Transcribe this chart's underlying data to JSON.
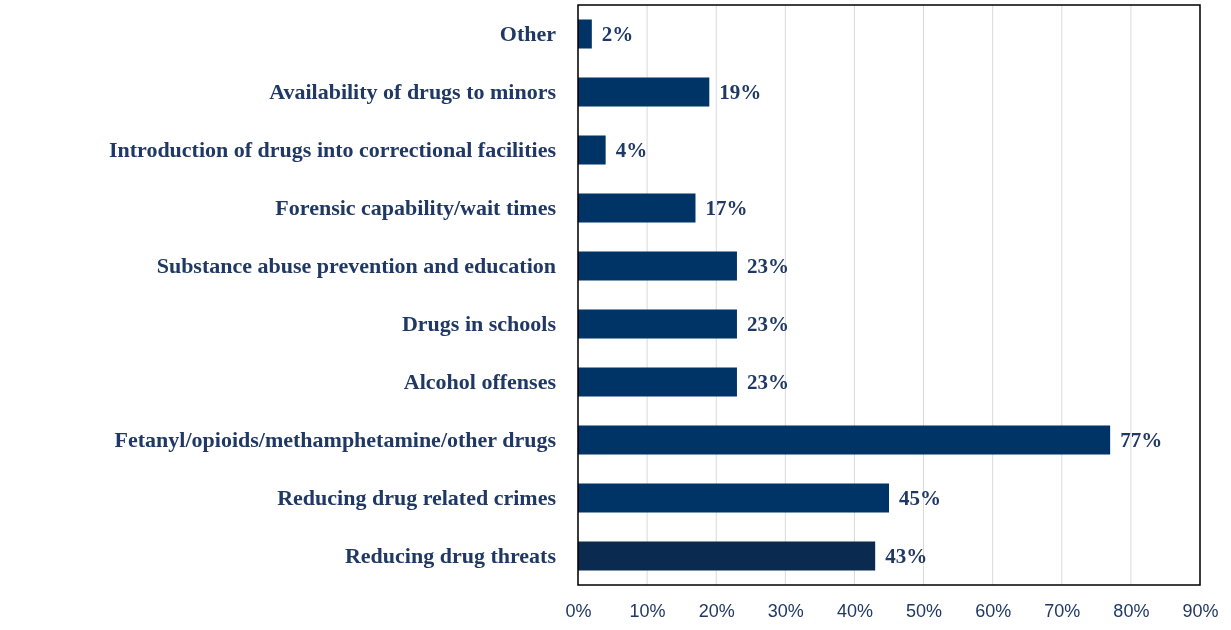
{
  "chart_data": {
    "type": "bar",
    "orientation": "horizontal",
    "categories": [
      "Other",
      "Availability of drugs to minors",
      "Introduction of drugs into correctional facilities",
      "Forensic capability/wait times",
      "Substance abuse prevention and education",
      "Drugs in schools",
      "Alcohol offenses",
      "Fetanyl/opioids/methamphetamine/other drugs",
      "Reducing drug related crimes",
      "Reducing drug threats"
    ],
    "values": [
      2,
      19,
      4,
      17,
      23,
      23,
      23,
      77,
      45,
      43
    ],
    "colors": [
      "#003366",
      "#003366",
      "#003366",
      "#003366",
      "#003366",
      "#003366",
      "#003366",
      "#003366",
      "#003366",
      "#0b2a50"
    ],
    "value_labels": [
      "2%",
      "19%",
      "4%",
      "17%",
      "23%",
      "23%",
      "23%",
      "77%",
      "45%",
      "43%"
    ],
    "xlim": [
      0,
      90
    ],
    "xticks": [
      {
        "value": 0,
        "label": "0%"
      },
      {
        "value": 10,
        "label": "10%"
      },
      {
        "value": 20,
        "label": "20%"
      },
      {
        "value": 30,
        "label": "30%"
      },
      {
        "value": 40,
        "label": "40%"
      },
      {
        "value": 50,
        "label": "50%"
      },
      {
        "value": 60,
        "label": "60%"
      },
      {
        "value": 70,
        "label": "70%"
      },
      {
        "value": 80,
        "label": "80%"
      },
      {
        "value": 90,
        "label": "90%"
      }
    ],
    "grid": "x"
  }
}
